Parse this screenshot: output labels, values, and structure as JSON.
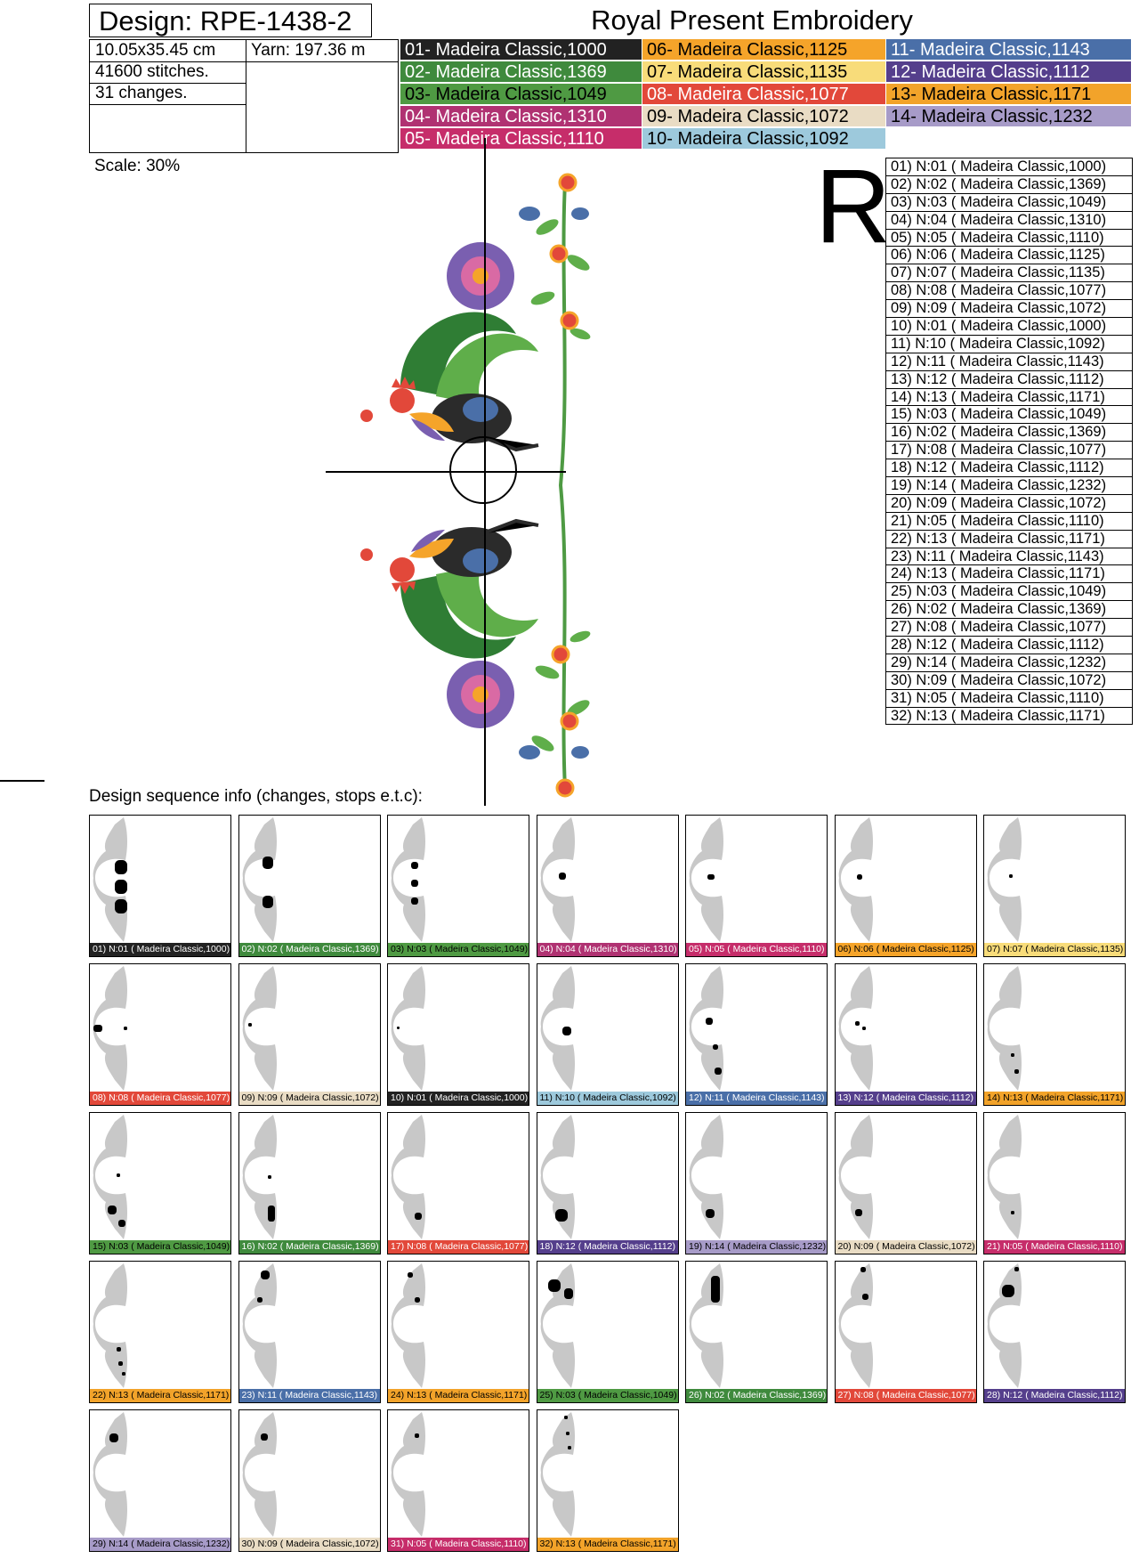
{
  "header": {
    "design_label": "Design: RPE-1438-2",
    "brand": "Royal Present Embroidery"
  },
  "info": {
    "size": "10.05x35.45 cm",
    "yarn": "Yarn: 197.36 m",
    "stitches": "41600 stitches.",
    "changes": "31 changes."
  },
  "palette": [
    {
      "label": "01- Madeira Classic,1000",
      "bg": "#222222",
      "fg": "#ffffff"
    },
    {
      "label": "02- Madeira Classic,1369",
      "bg": "#3f8a3d",
      "fg": "#ffffff"
    },
    {
      "label": "03- Madeira Classic,1049",
      "bg": "#4f9a43",
      "fg": "#000000"
    },
    {
      "label": "04- Madeira Classic,1310",
      "bg": "#b03272",
      "fg": "#ffffff"
    },
    {
      "label": "05- Madeira Classic,1110",
      "bg": "#c62d6a",
      "fg": "#ffffff"
    },
    {
      "label": "06- Madeira Classic,1125",
      "bg": "#f5a42a",
      "fg": "#000000"
    },
    {
      "label": "07- Madeira Classic,1135",
      "bg": "#f8dc7a",
      "fg": "#000000"
    },
    {
      "label": "08- Madeira Classic,1077",
      "bg": "#e2483a",
      "fg": "#ffffff"
    },
    {
      "label": "09- Madeira Classic,1072",
      "bg": "#e9dcc4",
      "fg": "#000000"
    },
    {
      "label": "10- Madeira Classic,1092",
      "bg": "#9dc9dc",
      "fg": "#000000"
    },
    {
      "label": "11- Madeira Classic,1143",
      "bg": "#4a6fa8",
      "fg": "#ffffff"
    },
    {
      "label": "12- Madeira Classic,1112",
      "bg": "#553f8c",
      "fg": "#ffffff"
    },
    {
      "label": "13- Madeira Classic,1171",
      "bg": "#f2a32a",
      "fg": "#000000"
    },
    {
      "label": "14- Madeira Classic,1232",
      "bg": "#a79bc8",
      "fg": "#000000"
    }
  ],
  "scale_label": "Scale: 30%",
  "big_letter": "R",
  "sequence": [
    {
      "label": "01) N:01 ( Madeira Classic,1000)",
      "thread": 1
    },
    {
      "label": "02) N:02 ( Madeira Classic,1369)",
      "thread": 2
    },
    {
      "label": "03) N:03 ( Madeira Classic,1049)",
      "thread": 3
    },
    {
      "label": "04) N:04 ( Madeira Classic,1310)",
      "thread": 4
    },
    {
      "label": "05) N:05 ( Madeira Classic,1110)",
      "thread": 5
    },
    {
      "label": "06) N:06 ( Madeira Classic,1125)",
      "thread": 6
    },
    {
      "label": "07) N:07 ( Madeira Classic,1135)",
      "thread": 7
    },
    {
      "label": "08) N:08 ( Madeira Classic,1077)",
      "thread": 8
    },
    {
      "label": "09) N:09 ( Madeira Classic,1072)",
      "thread": 9
    },
    {
      "label": "10) N:01 ( Madeira Classic,1000)",
      "thread": 1
    },
    {
      "label": "11) N:10 ( Madeira Classic,1092)",
      "thread": 10
    },
    {
      "label": "12) N:11 ( Madeira Classic,1143)",
      "thread": 11
    },
    {
      "label": "13) N:12 ( Madeira Classic,1112)",
      "thread": 12
    },
    {
      "label": "14) N:13 ( Madeira Classic,1171)",
      "thread": 13
    },
    {
      "label": "15) N:03 ( Madeira Classic,1049)",
      "thread": 3
    },
    {
      "label": "16) N:02 ( Madeira Classic,1369)",
      "thread": 2
    },
    {
      "label": "17) N:08 ( Madeira Classic,1077)",
      "thread": 8
    },
    {
      "label": "18) N:12 ( Madeira Classic,1112)",
      "thread": 12
    },
    {
      "label": "19) N:14 ( Madeira Classic,1232)",
      "thread": 14
    },
    {
      "label": "20) N:09 ( Madeira Classic,1072)",
      "thread": 9
    },
    {
      "label": "21) N:05 ( Madeira Classic,1110)",
      "thread": 5
    },
    {
      "label": "22) N:13 ( Madeira Classic,1171)",
      "thread": 13
    },
    {
      "label": "23) N:11 ( Madeira Classic,1143)",
      "thread": 11
    },
    {
      "label": "24) N:13 ( Madeira Classic,1171)",
      "thread": 13
    },
    {
      "label": "25) N:03 ( Madeira Classic,1049)",
      "thread": 3
    },
    {
      "label": "26) N:02 ( Madeira Classic,1369)",
      "thread": 2
    },
    {
      "label": "27) N:08 ( Madeira Classic,1077)",
      "thread": 8
    },
    {
      "label": "28) N:12 ( Madeira Classic,1112)",
      "thread": 12
    },
    {
      "label": "29) N:14 ( Madeira Classic,1232)",
      "thread": 14
    },
    {
      "label": "30) N:09 ( Madeira Classic,1072)",
      "thread": 9
    },
    {
      "label": "31) N:05 ( Madeira Classic,1110)",
      "thread": 5
    },
    {
      "label": "32) N:13 ( Madeira Classic,1171)",
      "thread": 13
    }
  ],
  "thumb_labels": [
    "01) N:01 ( Madeira Classic,1000)",
    "02) N:02 ( Madeira Classic,1369)",
    "03) N:03 ( Madeira Classic,1049)",
    "04) N:04 ( Madeira Classic,1310)",
    "05) N:05 ( Madeira Classic,1110)",
    "06) N:06 ( Madeira Classic,1125)",
    "07) N:07 ( Madeira Classic,1135)",
    "08) N:08 ( Madeira Classic,1077)",
    "09) N:09 ( Madeira Classic,1072)",
    "10) N:01 ( Madeira Classic,1000)",
    "11) N:10 ( Madeira Classic,1092)",
    "12) N:11 ( Madeira Classic,1143)",
    "13) N:12 ( Madeira Classic,1112)",
    "14) N:13 ( Madeira Classic,1171)",
    "15) N:03 ( Madeira Classic,1049)",
    "16) N:02 ( Madeira Classic,1369)",
    "17) N:08 ( Madeira Classic,1077)",
    "18) N:12 ( Madeira Classic,1112)",
    "19) N:14 ( Madeira Classic,1232)",
    "20) N:09 ( Madeira Classic,1072)",
    "21) N:05 ( Madeira Classic,1110)",
    "22) N:13 ( Madeira Classic,1171)",
    "23) N:11 ( Madeira Classic,1143)",
    "24) N:13 ( Madeira Classic,1171)",
    "25) N:03 ( Madeira Classic,1049)",
    "26) N:02 ( Madeira Classic,1369)",
    "27) N:08 ( Madeira Classic,1077)",
    "28) N:12 ( Madeira Classic,1112)",
    "29) N:14 ( Madeira Classic,1232)",
    "30) N:09 ( Madeira Classic,1072)",
    "31) N:05 ( Madeira Classic,1110)",
    "32) N:13 ( Madeira Classic,1171)"
  ],
  "sequence_title": "Design sequence info (changes, stops e.t.c):"
}
